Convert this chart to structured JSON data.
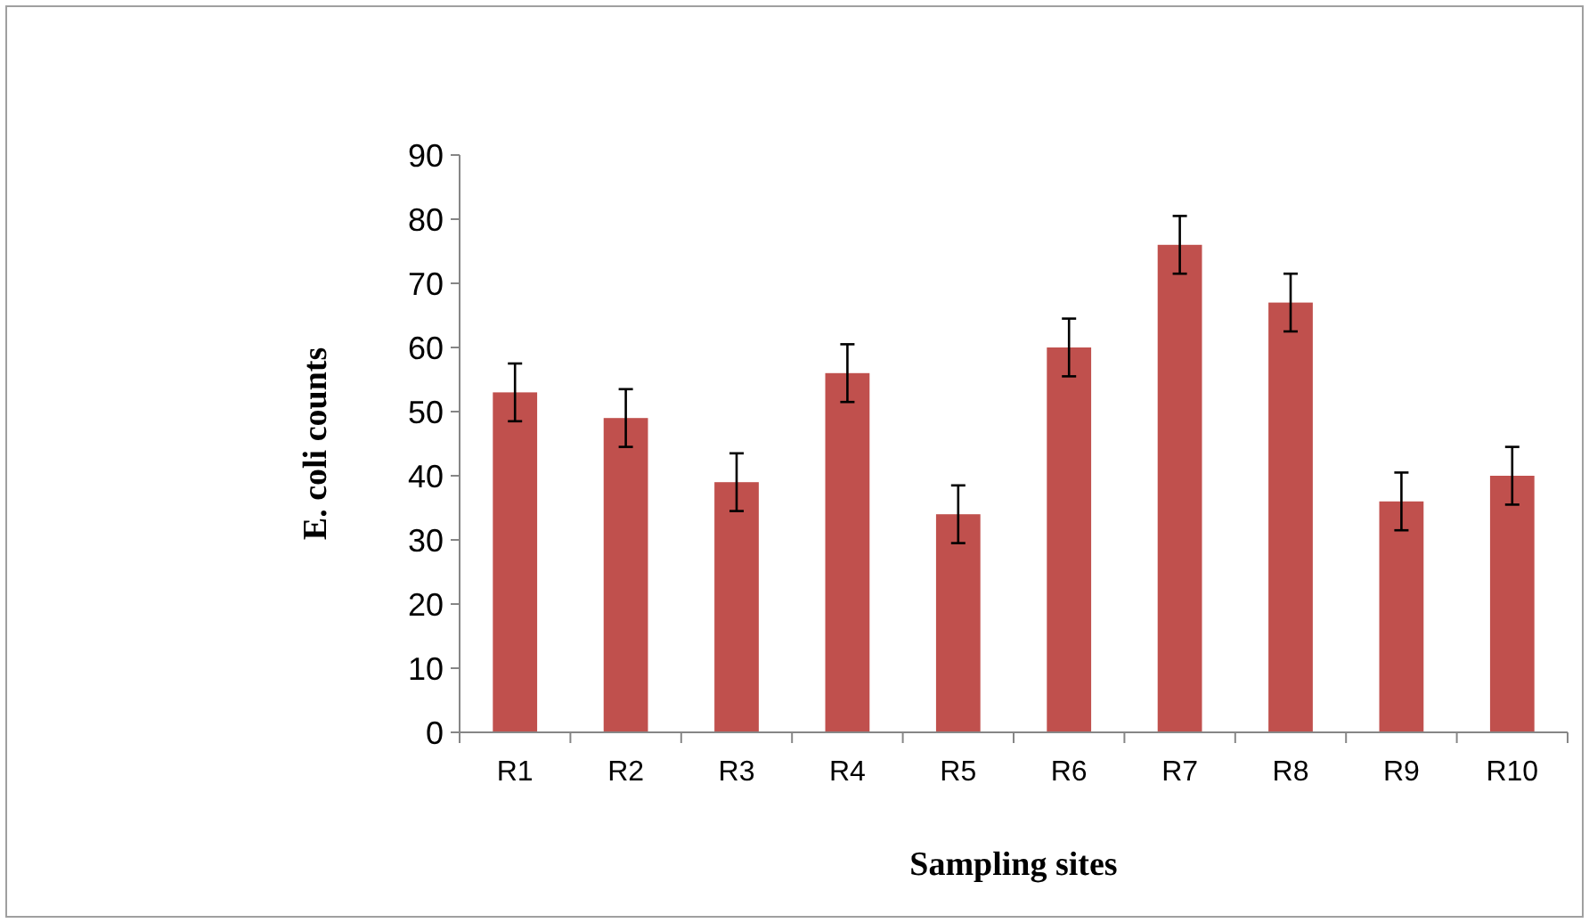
{
  "chart_data": {
    "type": "bar",
    "xlabel": "Sampling sites",
    "ylabel": "E. coli counts",
    "categories": [
      "R1",
      "R2",
      "R3",
      "R4",
      "R5",
      "R6",
      "R7",
      "R8",
      "R9",
      "R10"
    ],
    "values": [
      53,
      49,
      39,
      56,
      34,
      60,
      76,
      67,
      36,
      40
    ],
    "errors": [
      4.5,
      4.5,
      4.5,
      4.5,
      4.5,
      4.5,
      4.5,
      4.5,
      4.5,
      4.5
    ],
    "color": "#c0504d",
    "ylim": [
      0,
      90
    ],
    "yticks": [
      0,
      10,
      20,
      30,
      40,
      50,
      60,
      70,
      80,
      90
    ],
    "grid": false
  }
}
